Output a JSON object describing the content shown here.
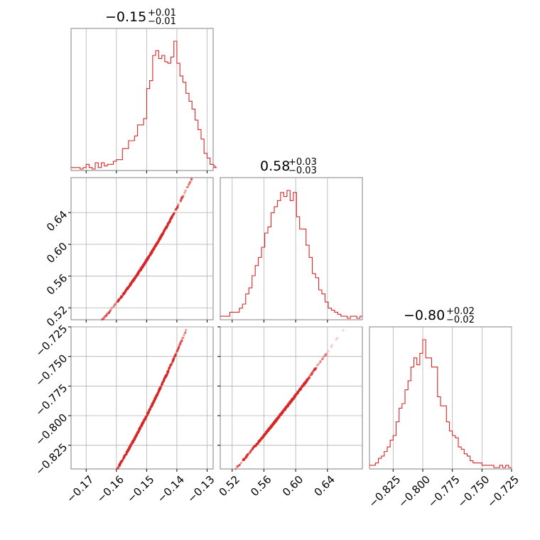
{
  "chart_data": {
    "type": "corner",
    "color": "#d62728",
    "parameters": [
      {
        "title_main": "−0.15",
        "title_sup": "+0.01",
        "title_sub": "−0.01",
        "range": [
          -0.175,
          -0.128
        ]
      },
      {
        "title_main": "0.58",
        "title_sup": "+0.03",
        "title_sub": "−0.03",
        "range": [
          0.505,
          0.684
        ]
      },
      {
        "title_main": "−0.80",
        "title_sup": "+0.02",
        "title_sub": "−0.02",
        "range": [
          -0.845,
          -0.725
        ]
      }
    ],
    "ticks": [
      {
        "values": [
          -0.17,
          -0.16,
          -0.15,
          -0.14,
          -0.13
        ],
        "labels": [
          "−0.17",
          "−0.16",
          "−0.15",
          "−0.14",
          "−0.13"
        ]
      },
      {
        "values": [
          0.52,
          0.56,
          0.6,
          0.64
        ],
        "labels": [
          "0.52",
          "0.56",
          "0.60",
          "0.64"
        ]
      },
      {
        "values": [
          -0.825,
          -0.8,
          -0.775,
          -0.75,
          -0.725
        ],
        "labels": [
          "−0.825",
          "−0.800",
          "−0.775",
          "−0.750",
          "−0.725"
        ]
      }
    ],
    "histograms": [
      {
        "edges_start": -0.175,
        "bin_width": 0.001,
        "counts": [
          1,
          1,
          1,
          0,
          1,
          3,
          1,
          0,
          4,
          1,
          4,
          2,
          3,
          3,
          5,
          6,
          6,
          13,
          13,
          18,
          18,
          21,
          28,
          28,
          32,
          51,
          56,
          72,
          75,
          70,
          72,
          68,
          67,
          71,
          81,
          67,
          59,
          55,
          48,
          43,
          38,
          31,
          25,
          19,
          10,
          7,
          3,
          3,
          1
        ]
      },
      {
        "edges_start": 0.505,
        "bin_width": 0.004,
        "counts": [
          1,
          1,
          1,
          3,
          3,
          3,
          5,
          7,
          12,
          15,
          21,
          26,
          30,
          35,
          42,
          45,
          52,
          55,
          58,
          62,
          60,
          63,
          58,
          62,
          50,
          44,
          44,
          36,
          30,
          22,
          20,
          14,
          12,
          8,
          5,
          4,
          3,
          2,
          1,
          1,
          0,
          1,
          1,
          0,
          1
        ]
      },
      {
        "edges_start": -0.845,
        "bin_width": 0.0025,
        "counts": [
          1,
          1,
          2,
          4,
          5,
          7,
          9,
          12,
          14,
          20,
          26,
          28,
          34,
          38,
          44,
          48,
          45,
          50,
          56,
          48,
          48,
          44,
          44,
          31,
          27,
          27,
          20,
          16,
          14,
          13,
          9,
          8,
          6,
          5,
          3,
          2,
          2,
          2,
          1,
          1,
          1,
          1,
          0,
          0,
          1,
          0,
          1,
          0
        ]
      }
    ],
    "scatter_relations": {
      "param2_vs_param1": {
        "anchor_x": -0.15,
        "anchor_y": 0.58,
        "slope_near": 6.0,
        "curvature": 60
      },
      "param3_vs_param1": {
        "anchor_x": -0.15,
        "anchor_y": -0.8,
        "slope_near": 5.0,
        "curvature": 40
      },
      "param3_vs_param2": {
        "anchor_x": 0.58,
        "anchor_y": -0.8,
        "slope_near": 0.85,
        "curvature": 0.7
      }
    },
    "grid": true
  }
}
